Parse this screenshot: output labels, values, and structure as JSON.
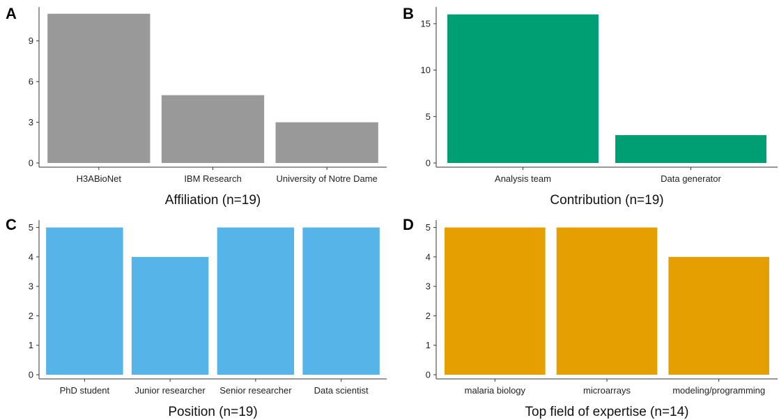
{
  "chart_data": [
    {
      "type": "bar",
      "panel_label": "A",
      "xlabel": "Affiliation (n=19)",
      "ylabel": "",
      "categories": [
        "H3ABioNet",
        "IBM Research",
        "University of Notre Dame"
      ],
      "values": [
        11,
        5,
        3
      ],
      "yticks": [
        0,
        3,
        6,
        9
      ],
      "ylim": [
        0,
        11.5
      ],
      "color": "#999999",
      "grid": false,
      "legend": "none"
    },
    {
      "type": "bar",
      "panel_label": "B",
      "xlabel": "Contribution (n=19)",
      "ylabel": "",
      "categories": [
        "Analysis team",
        "Data generator"
      ],
      "values": [
        16,
        3
      ],
      "yticks": [
        0,
        5,
        10,
        15
      ],
      "ylim": [
        0,
        16.8
      ],
      "color": "#009E73",
      "grid": false,
      "legend": "none"
    },
    {
      "type": "bar",
      "panel_label": "C",
      "xlabel": "Position (n=19)",
      "ylabel": "",
      "categories": [
        "PhD student",
        "Junior researcher",
        "Senior researcher",
        "Data scientist"
      ],
      "values": [
        5,
        4,
        5,
        5
      ],
      "yticks": [
        0,
        1,
        2,
        3,
        4,
        5
      ],
      "ylim": [
        0,
        5.25
      ],
      "color": "#56B4E9",
      "grid": false,
      "legend": "none"
    },
    {
      "type": "bar",
      "panel_label": "D",
      "xlabel": "Top field of expertise (n=14)",
      "ylabel": "",
      "categories": [
        "malaria biology",
        "microarrays",
        "modeling/programming"
      ],
      "values": [
        5,
        5,
        4
      ],
      "yticks": [
        0,
        1,
        2,
        3,
        4,
        5
      ],
      "ylim": [
        0,
        5.25
      ],
      "color": "#E69F00",
      "grid": false,
      "legend": "none"
    }
  ]
}
